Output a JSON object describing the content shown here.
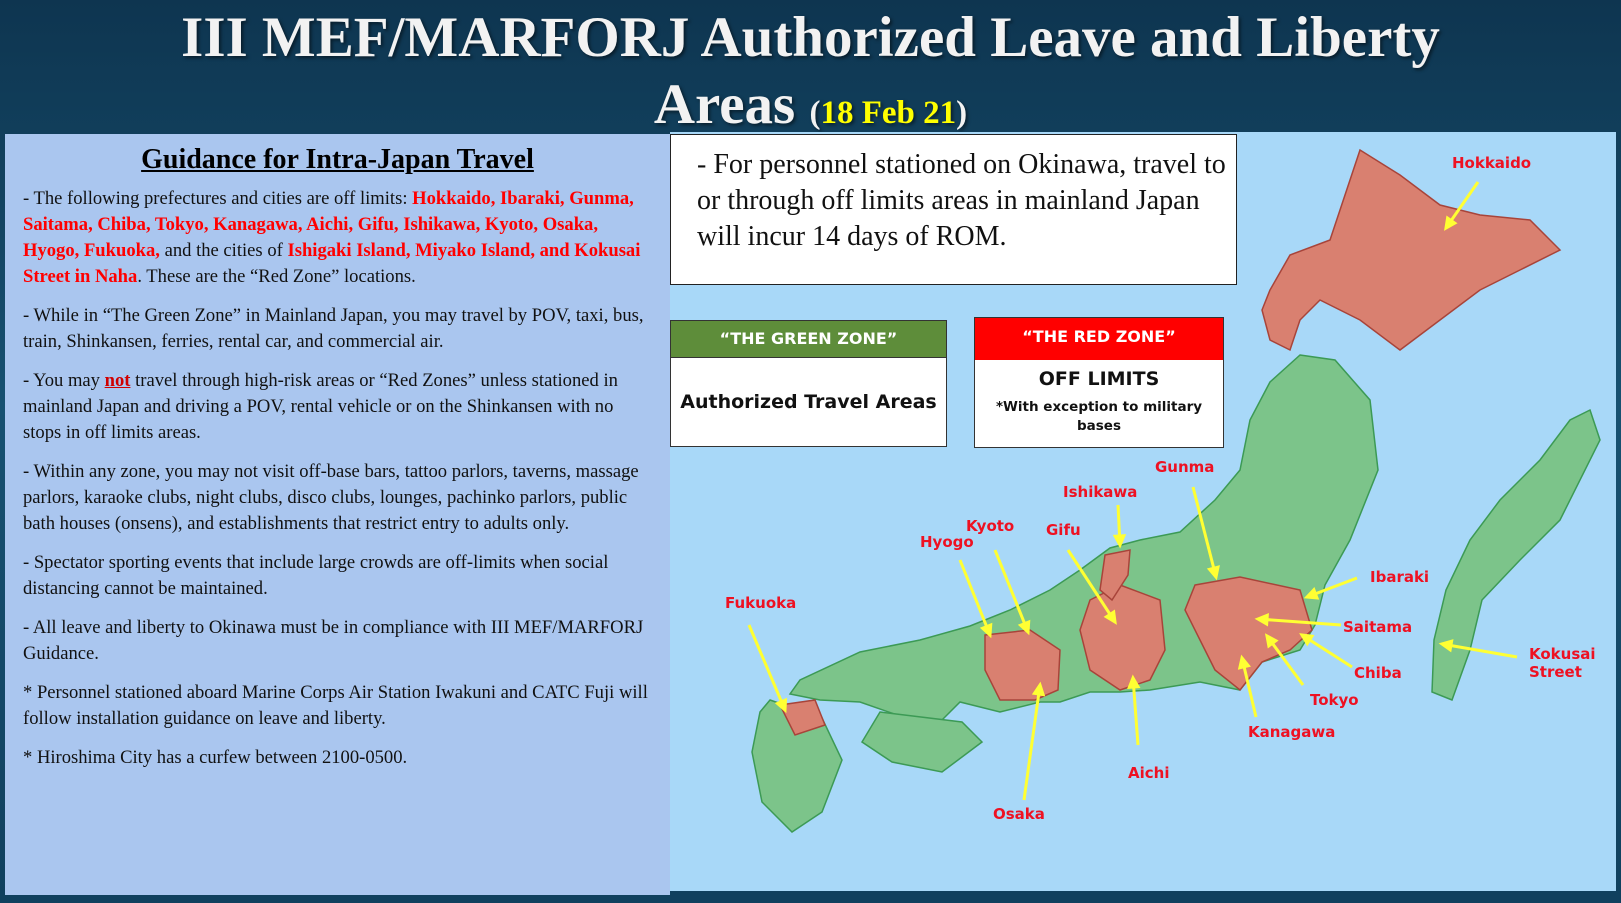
{
  "header": {
    "title_line1": "III MEF/MARFORJ Authorized Leave and Liberty",
    "title_line2": "Areas",
    "date": "18 Feb 21"
  },
  "guidance": {
    "heading": "Guidance for Intra-Japan  Travel",
    "p1_start": "- The following prefectures and cities are off limits: ",
    "p1_red1": "Hokkaido, Ibaraki, Gunma, Saitama, Chiba, Tokyo, Kanagawa, Aichi, Gifu, Ishikawa, Kyoto, Osaka, Hyogo, Fukuoka,",
    "p1_mid": " and the cities of ",
    "p1_red2": "Ishigaki Island, Miyako Island, and Kokusai Street in Naha",
    "p1_end": ". These are the “Red Zone” locations.",
    "p2": "- While in “The Green Zone” in Mainland Japan, you may travel by POV, taxi, bus, train, Shinkansen, ferries, rental car, and commercial air.",
    "p3_start": "- You may ",
    "p3_not": "not",
    "p3_end": " travel through high-risk areas or “Red Zones” unless stationed in mainland Japan and driving a POV, rental vehicle or on the Shinkansen with no stops in off limits areas.",
    "p4": "- Within any zone, you may not visit off-base bars, tattoo parlors, taverns, massage parlors, karaoke clubs, night clubs, disco clubs, lounges, pachinko parlors, public bath houses (onsens), and establishments that restrict entry to adults only.",
    "p5": "- Spectator sporting events that include large crowds are off-limits when social distancing cannot be maintained.",
    "p6": "- All leave and liberty to Okinawa must be in compliance with III MEF/MARFORJ Guidance.",
    "p7": "* Personnel stationed aboard Marine Corps Air Station Iwakuni and CATC Fuji will follow installation guidance on leave and liberty.",
    "p8": "* Hiroshima City has a curfew between 2100-0500."
  },
  "okinawa_note": "- For personnel stationed on Okinawa, travel to or through off limits areas in mainland Japan will incur 14 days of ROM.",
  "green_zone": {
    "header": "“THE GREEN ZONE”",
    "body": "Authorized Travel Areas",
    "color": "#5e8d3a"
  },
  "red_zone": {
    "header": "“THE RED ZONE”",
    "body": "OFF LIMITS",
    "note": "*With exception to military bases",
    "color": "#ff0000"
  },
  "map": {
    "land_color": "#7cc48a",
    "red_color": "#d98070",
    "labels": [
      "Hokkaido",
      "Gunma",
      "Ishikawa",
      "Kyoto",
      "Gifu",
      "Hyogo",
      "Fukuoka",
      "Ibaraki",
      "Saitama",
      "Chiba",
      "Tokyo",
      "Kanagawa",
      "Aichi",
      "Osaka",
      "Kokusai Street"
    ]
  }
}
